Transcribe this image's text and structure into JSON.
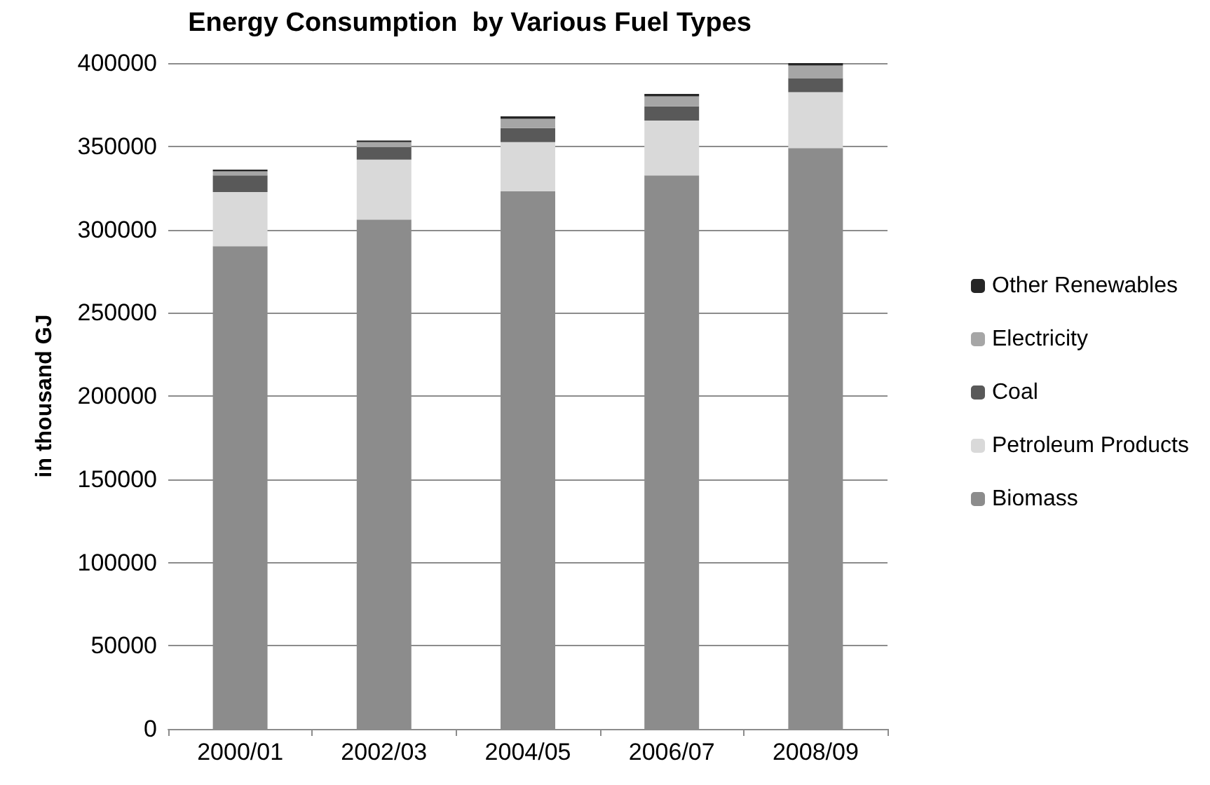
{
  "chart_data": {
    "type": "bar",
    "title": "Energy Consumption  by Various Fuel Types",
    "ylabel": "in thousand GJ",
    "categories": [
      "2000/01",
      "2002/03",
      "2004/05",
      "2006/07",
      "2008/09"
    ],
    "stacked": true,
    "series": [
      {
        "name": "Biomass",
        "color": "#8c8c8c",
        "values": [
          290000,
          306000,
          323000,
          332500,
          349000
        ]
      },
      {
        "name": "Petroleum Products",
        "color": "#d9d9d9",
        "values": [
          32500,
          36000,
          29500,
          33000,
          33500
        ]
      },
      {
        "name": "Coal",
        "color": "#595959",
        "values": [
          10000,
          7500,
          8500,
          8500,
          8500
        ]
      },
      {
        "name": "Electricity",
        "color": "#a6a6a6",
        "values": [
          2500,
          3000,
          5500,
          6000,
          7500
        ]
      },
      {
        "name": "Other Renewables",
        "color": "#262626",
        "values": [
          1000,
          1000,
          1500,
          1500,
          1500
        ]
      }
    ],
    "ylim": [
      0,
      400000
    ],
    "yticks": [
      0,
      50000,
      100000,
      150000,
      200000,
      250000,
      300000,
      350000,
      400000
    ],
    "grid": "y",
    "legend": "right"
  }
}
